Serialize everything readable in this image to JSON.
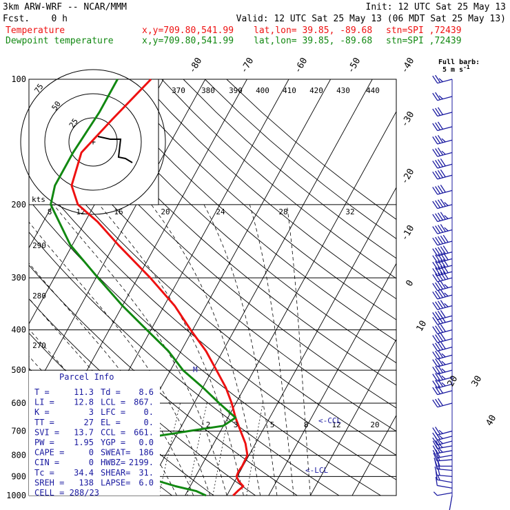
{
  "header": {
    "model": "3km ARW-WRF -- NCAR/MMM",
    "init": "Init: 12 UTC Sat 25 May 13",
    "fcst": "Fcst.    0 h",
    "valid": "Valid: 12 UTC Sat 25 May 13 (06 MDT Sat 25 May 13)",
    "temp_label": "Temperature",
    "dew_label": "Dewpoint temperature",
    "xy": "x,y=709.80,541.99",
    "latlon": "lat,lon= 39.85, -89.68",
    "stn": "stn=SPI ,72439"
  },
  "colors": {
    "temperature": "#ee1111",
    "dewpoint": "#118811",
    "text": "#1a1aa0",
    "grid": "#000000"
  },
  "chart_data": {
    "type": "line",
    "title": "",
    "ylabel": "",
    "y_scale": "log-pressure",
    "ylim_hPa": [
      1000,
      100
    ],
    "pressure_labels": [
      "100",
      "200",
      "300",
      "400",
      "500",
      "600",
      "700",
      "800",
      "900",
      "1000"
    ],
    "pressure_levels": [
      100,
      200,
      300,
      400,
      500,
      600,
      700,
      800,
      900,
      1000
    ],
    "isotherm_labels": [
      "-80",
      "-70",
      "-60",
      "-50",
      "-40",
      "-30",
      "-20",
      "-10",
      "0",
      "10",
      "20",
      "30",
      "40"
    ],
    "theta_labels": [
      "370",
      "380",
      "390",
      "400",
      "410",
      "420",
      "430",
      "440",
      "290",
      "280",
      "270"
    ],
    "mixing_ratio_labels": [
      "2",
      "3",
      "5",
      "8",
      "12",
      "20"
    ],
    "series": [
      {
        "name": "Temperature",
        "points": [
          [
            1000,
            21.5
          ],
          [
            975,
            22
          ],
          [
            950,
            22.7
          ],
          [
            925,
            21
          ],
          [
            900,
            19.8
          ],
          [
            875,
            19.6
          ],
          [
            850,
            19.8
          ],
          [
            800,
            19.6
          ],
          [
            750,
            17.6
          ],
          [
            700,
            14.8
          ],
          [
            650,
            11.8
          ],
          [
            600,
            9
          ],
          [
            550,
            5.5
          ],
          [
            500,
            1
          ],
          [
            450,
            -4
          ],
          [
            400,
            -10.5
          ],
          [
            350,
            -17.5
          ],
          [
            300,
            -27
          ],
          [
            250,
            -39
          ],
          [
            220,
            -47
          ],
          [
            200,
            -54
          ],
          [
            180,
            -58
          ],
          [
            150,
            -60
          ],
          [
            125,
            -57
          ],
          [
            100,
            -53
          ]
        ]
      },
      {
        "name": "Dewpoint temperature",
        "points": [
          [
            1000,
            15
          ],
          [
            975,
            12
          ],
          [
            950,
            6.5
          ],
          [
            925,
            2
          ],
          [
            900,
            -6
          ],
          [
            850,
            -13
          ],
          [
            800,
            -19
          ],
          [
            775,
            -21
          ],
          [
            750,
            -15
          ],
          [
            700,
            2.5
          ],
          [
            680,
            10
          ],
          [
            650,
            11.8
          ],
          [
            600,
            6
          ],
          [
            550,
            0
          ],
          [
            500,
            -7
          ],
          [
            450,
            -13
          ],
          [
            400,
            -21
          ],
          [
            350,
            -30
          ],
          [
            300,
            -39.5
          ],
          [
            250,
            -50.5
          ],
          [
            200,
            -60.5
          ],
          [
            180,
            -62
          ],
          [
            150,
            -62
          ],
          [
            120,
            -61
          ],
          [
            100,
            -61
          ]
        ]
      }
    ],
    "annotations": {
      "ccl": "<-CCL",
      "lcl": "<-LCL",
      "m": "M"
    },
    "hodograph": {
      "rings_kts": [
        "25",
        "50",
        "75"
      ],
      "unit": "kts",
      "speed_labels": [
        "8",
        "12",
        "16",
        "20",
        "24",
        "28",
        "32"
      ]
    },
    "wind_barb_legend": {
      "line1": "Full barb:",
      "line2": "5 m s",
      "sup": "-1"
    },
    "wind_barbs": [
      [
        1000,
        190,
        5
      ],
      [
        985,
        260,
        3
      ],
      [
        960,
        280,
        10
      ],
      [
        930,
        280,
        15
      ],
      [
        900,
        275,
        18
      ],
      [
        870,
        275,
        18
      ],
      [
        850,
        270,
        20
      ],
      [
        820,
        265,
        22
      ],
      [
        800,
        260,
        22
      ],
      [
        780,
        260,
        25
      ],
      [
        760,
        260,
        25
      ],
      [
        740,
        255,
        25
      ],
      [
        720,
        255,
        25
      ],
      [
        700,
        255,
        25
      ],
      [
        600,
        255,
        30
      ],
      [
        560,
        255,
        30
      ],
      [
        540,
        255,
        35
      ],
      [
        520,
        255,
        35
      ],
      [
        500,
        255,
        35
      ],
      [
        480,
        255,
        35
      ],
      [
        460,
        255,
        35
      ],
      [
        440,
        255,
        40
      ],
      [
        420,
        255,
        40
      ],
      [
        400,
        255,
        40
      ],
      [
        380,
        255,
        40
      ],
      [
        370,
        255,
        40
      ],
      [
        350,
        255,
        45
      ],
      [
        330,
        255,
        45
      ],
      [
        315,
        255,
        45
      ],
      [
        300,
        255,
        50
      ],
      [
        290,
        255,
        50
      ],
      [
        280,
        255,
        50
      ],
      [
        270,
        255,
        50
      ],
      [
        260,
        255,
        50
      ],
      [
        245,
        255,
        50
      ],
      [
        230,
        255,
        45
      ],
      [
        215,
        255,
        45
      ],
      [
        200,
        255,
        45
      ],
      [
        185,
        255,
        40
      ],
      [
        170,
        255,
        40
      ],
      [
        160,
        255,
        40
      ],
      [
        150,
        255,
        35
      ],
      [
        140,
        255,
        35
      ],
      [
        130,
        255,
        30
      ],
      [
        120,
        255,
        30
      ],
      [
        110,
        255,
        25
      ],
      [
        100,
        255,
        25
      ]
    ],
    "parcel_info": {
      "title": "Parcel Info",
      "rows": [
        [
          "T  =",
          "11.3",
          "Td =",
          "8.6"
        ],
        [
          "LI =",
          "12.8",
          "LCL =",
          "867."
        ],
        [
          "K  =",
          "3",
          "LFC =",
          "0."
        ],
        [
          "TT =",
          "27",
          "EL  =",
          "0."
        ],
        [
          "SVI =",
          "13.7",
          "CCL =",
          "661."
        ],
        [
          "PW =",
          "1.95",
          "YGP =",
          "0.0"
        ],
        [
          "CAPE =",
          "0",
          "SWEAT=",
          "186"
        ],
        [
          "CIN =",
          "0",
          "HWBZ=",
          "2199."
        ],
        [
          "Tc =",
          "34.4",
          "SHEAR=",
          "31."
        ],
        [
          "SREH =",
          "138",
          "LAPSE=",
          "6.0"
        ],
        [
          "CELL = 288/23",
          "",
          "",
          ""
        ]
      ]
    }
  }
}
